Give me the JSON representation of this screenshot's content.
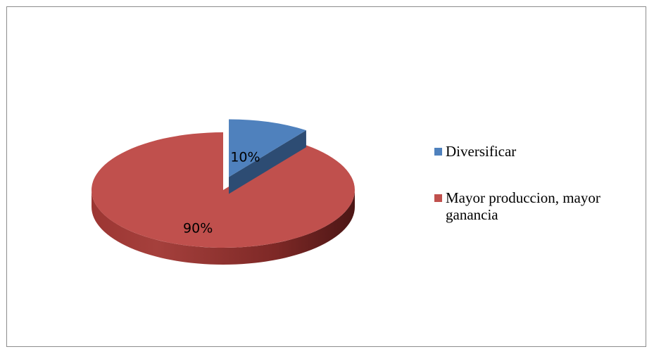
{
  "chart_data": {
    "type": "pie",
    "title": "",
    "categories": [
      "Diversificar",
      "Mayor produccion, mayor ganancia"
    ],
    "values": [
      10,
      90
    ],
    "data_labels": [
      "10%",
      "90%"
    ],
    "colors": [
      "#4F81BD",
      "#C0504D"
    ],
    "legend_position": "right",
    "style": "3d-exploded"
  },
  "legend": {
    "items": [
      {
        "label": "Diversificar",
        "color": "#4F81BD"
      },
      {
        "label": "Mayor produccion, mayor ganancia",
        "color": "#C0504D"
      }
    ]
  }
}
